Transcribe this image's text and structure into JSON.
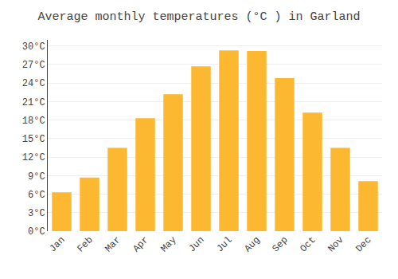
{
  "chart_data": {
    "type": "bar",
    "title": "Average monthly temperatures (°C ) in Garland",
    "categories": [
      "Jan",
      "Feb",
      "Mar",
      "Apr",
      "May",
      "Jun",
      "Jul",
      "Aug",
      "Sep",
      "Oct",
      "Nov",
      "Dec"
    ],
    "values": [
      6.3,
      8.7,
      13.5,
      18.3,
      22.2,
      26.7,
      29.3,
      29.2,
      24.8,
      19.2,
      13.5,
      8.1
    ],
    "color": "#FDB831",
    "ylim": [
      0,
      31
    ],
    "yticks": [
      {
        "value": 0,
        "label": "0°C"
      },
      {
        "value": 3,
        "label": "3°C"
      },
      {
        "value": 6,
        "label": "6°C"
      },
      {
        "value": 9,
        "label": "9°C"
      },
      {
        "value": 12,
        "label": "12°C"
      },
      {
        "value": 15,
        "label": "15°C"
      },
      {
        "value": 18,
        "label": "18°C"
      },
      {
        "value": 21,
        "label": "21°C"
      },
      {
        "value": 24,
        "label": "24°C"
      },
      {
        "value": 27,
        "label": "27°C"
      },
      {
        "value": 30,
        "label": "30°C"
      }
    ],
    "grid": true
  }
}
